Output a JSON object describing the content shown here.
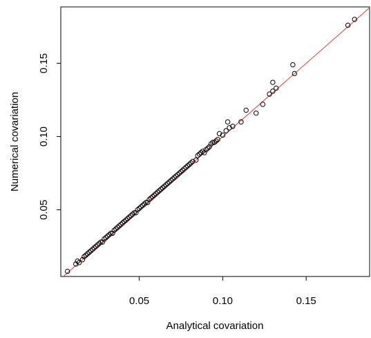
{
  "chart_data": {
    "type": "scatter",
    "title": "",
    "xlabel": "Analytical covariation",
    "ylabel": "Numerical covariation",
    "xlim": [
      0.003,
      0.188
    ],
    "ylim": [
      0.0045,
      0.1885
    ],
    "x_ticks": [
      0.05,
      0.1,
      0.15
    ],
    "x_tick_labels": [
      "0.05",
      "0.10",
      "0.15"
    ],
    "y_ticks": [
      0.05,
      0.1,
      0.15
    ],
    "y_tick_labels": [
      "0.05",
      "0.10",
      "0.15"
    ],
    "grid": false,
    "legend": "none",
    "reference_line": {
      "type": "identity",
      "slope": 1,
      "intercept": 0,
      "color": "#e8392f"
    },
    "colors": {
      "points": "#000000",
      "frame": "#000000",
      "reference_line": "#e8392f"
    },
    "series": [
      {
        "values_xy": [
          [
            0.007,
            0.008
          ],
          [
            0.012,
            0.013
          ],
          [
            0.013,
            0.015
          ],
          [
            0.014,
            0.014
          ],
          [
            0.016,
            0.016
          ],
          [
            0.017,
            0.018
          ],
          [
            0.018,
            0.019
          ],
          [
            0.019,
            0.02
          ],
          [
            0.02,
            0.021
          ],
          [
            0.021,
            0.022
          ],
          [
            0.022,
            0.023
          ],
          [
            0.023,
            0.024
          ],
          [
            0.024,
            0.025
          ],
          [
            0.025,
            0.026
          ],
          [
            0.026,
            0.027
          ],
          [
            0.027,
            0.028
          ],
          [
            0.028,
            0.028
          ],
          [
            0.029,
            0.03
          ],
          [
            0.03,
            0.031
          ],
          [
            0.031,
            0.032
          ],
          [
            0.032,
            0.033
          ],
          [
            0.033,
            0.034
          ],
          [
            0.034,
            0.034
          ],
          [
            0.035,
            0.036
          ],
          [
            0.036,
            0.037
          ],
          [
            0.037,
            0.038
          ],
          [
            0.038,
            0.039
          ],
          [
            0.039,
            0.04
          ],
          [
            0.04,
            0.041
          ],
          [
            0.041,
            0.042
          ],
          [
            0.042,
            0.043
          ],
          [
            0.043,
            0.044
          ],
          [
            0.044,
            0.045
          ],
          [
            0.045,
            0.046
          ],
          [
            0.046,
            0.047
          ],
          [
            0.047,
            0.048
          ],
          [
            0.048,
            0.048
          ],
          [
            0.049,
            0.05
          ],
          [
            0.05,
            0.051
          ],
          [
            0.051,
            0.052
          ],
          [
            0.052,
            0.053
          ],
          [
            0.053,
            0.054
          ],
          [
            0.054,
            0.055
          ],
          [
            0.055,
            0.055
          ],
          [
            0.056,
            0.057
          ],
          [
            0.057,
            0.058
          ],
          [
            0.058,
            0.059
          ],
          [
            0.059,
            0.06
          ],
          [
            0.06,
            0.061
          ],
          [
            0.061,
            0.062
          ],
          [
            0.062,
            0.063
          ],
          [
            0.063,
            0.064
          ],
          [
            0.064,
            0.065
          ],
          [
            0.065,
            0.066
          ],
          [
            0.066,
            0.067
          ],
          [
            0.067,
            0.068
          ],
          [
            0.068,
            0.069
          ],
          [
            0.069,
            0.07
          ],
          [
            0.07,
            0.071
          ],
          [
            0.071,
            0.072
          ],
          [
            0.072,
            0.073
          ],
          [
            0.073,
            0.074
          ],
          [
            0.074,
            0.075
          ],
          [
            0.075,
            0.076
          ],
          [
            0.076,
            0.077
          ],
          [
            0.077,
            0.078
          ],
          [
            0.078,
            0.079
          ],
          [
            0.079,
            0.08
          ],
          [
            0.08,
            0.081
          ],
          [
            0.081,
            0.082
          ],
          [
            0.082,
            0.083
          ],
          [
            0.084,
            0.084
          ],
          [
            0.085,
            0.087
          ],
          [
            0.086,
            0.088
          ],
          [
            0.087,
            0.089
          ],
          [
            0.088,
            0.09
          ],
          [
            0.089,
            0.089
          ],
          [
            0.09,
            0.091
          ],
          [
            0.091,
            0.092
          ],
          [
            0.092,
            0.093
          ],
          [
            0.093,
            0.095
          ],
          [
            0.094,
            0.096
          ],
          [
            0.095,
            0.096
          ],
          [
            0.096,
            0.097
          ],
          [
            0.097,
            0.098
          ],
          [
            0.098,
            0.102
          ],
          [
            0.1,
            0.101
          ],
          [
            0.102,
            0.104
          ],
          [
            0.103,
            0.11
          ],
          [
            0.104,
            0.106
          ],
          [
            0.106,
            0.107
          ],
          [
            0.111,
            0.11
          ],
          [
            0.114,
            0.118
          ],
          [
            0.12,
            0.116
          ],
          [
            0.124,
            0.122
          ],
          [
            0.128,
            0.129
          ],
          [
            0.13,
            0.137
          ],
          [
            0.13,
            0.131
          ],
          [
            0.132,
            0.133
          ],
          [
            0.142,
            0.149
          ],
          [
            0.143,
            0.143
          ],
          [
            0.175,
            0.176
          ],
          [
            0.179,
            0.18
          ]
        ]
      }
    ]
  }
}
